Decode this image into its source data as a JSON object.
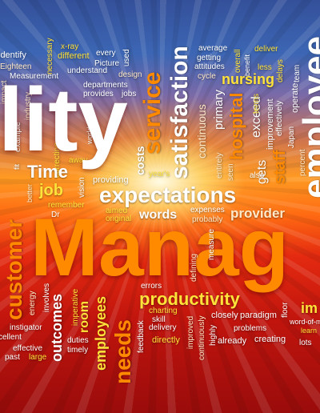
{
  "colors": {
    "orange": "#ff8a00",
    "yellow": "#ffe33a",
    "white": "#ffffff",
    "pale": "#ffe9c8",
    "blue": "#dfe8ff"
  },
  "words": [
    {
      "key": "lity",
      "text": "lity"
    },
    {
      "key": "manag",
      "text": "Manag"
    },
    {
      "key": "identify",
      "text": "identify"
    },
    {
      "key": "eighteen",
      "text": "Eighteen"
    },
    {
      "key": "measurement",
      "text": "Measurement"
    },
    {
      "key": "impact",
      "text": "impact"
    },
    {
      "key": "industry",
      "text": "industry"
    },
    {
      "key": "example",
      "text": "example"
    },
    {
      "key": "necessary",
      "text": "necessary"
    },
    {
      "key": "x_ray",
      "text": "x-ray"
    },
    {
      "key": "different",
      "text": "different"
    },
    {
      "key": "every",
      "text": "every"
    },
    {
      "key": "used",
      "text": "used"
    },
    {
      "key": "picture",
      "text": "Picture"
    },
    {
      "key": "understand",
      "text": "understand"
    },
    {
      "key": "design",
      "text": "design"
    },
    {
      "key": "departments",
      "text": "departments"
    },
    {
      "key": "provides",
      "text": "provides"
    },
    {
      "key": "jobs",
      "text": "jobs"
    },
    {
      "key": "service",
      "text": "service"
    },
    {
      "key": "satisfaction",
      "text": "satisfaction"
    },
    {
      "key": "average",
      "text": "average"
    },
    {
      "key": "getting",
      "text": "getting"
    },
    {
      "key": "attitudes",
      "text": "attitudes"
    },
    {
      "key": "cycle",
      "text": "cycle"
    },
    {
      "key": "overall",
      "text": "overall"
    },
    {
      "key": "deliver",
      "text": "deliver"
    },
    {
      "key": "benefit",
      "text": "benefit"
    },
    {
      "key": "less",
      "text": "less"
    },
    {
      "key": "delays",
      "text": "delays"
    },
    {
      "key": "team",
      "text": "team"
    },
    {
      "key": "nursing",
      "text": "nursing"
    },
    {
      "key": "employee",
      "text": "employee"
    },
    {
      "key": "primary",
      "text": "primary"
    },
    {
      "key": "continuous",
      "text": "continuous"
    },
    {
      "key": "hospital",
      "text": "hospital"
    },
    {
      "key": "exceed",
      "text": "exceed"
    },
    {
      "key": "terms",
      "text": "terms"
    },
    {
      "key": "improvement",
      "text": "improvement"
    },
    {
      "key": "effectively",
      "text": "effectively"
    },
    {
      "key": "operate",
      "text": "operate"
    },
    {
      "key": "japan",
      "text": "Japan"
    },
    {
      "key": "percent",
      "text": "percent"
    },
    {
      "key": "staff",
      "text": "staff"
    },
    {
      "key": "gets",
      "text": "gets"
    },
    {
      "key": "entirely",
      "text": "entirely"
    },
    {
      "key": "seen",
      "text": "seen"
    },
    {
      "key": "also",
      "text": "also"
    },
    {
      "key": "correcting",
      "text": "correcting"
    },
    {
      "key": "world",
      "text": "world"
    },
    {
      "key": "fit",
      "text": "fit"
    },
    {
      "key": "better",
      "text": "better"
    },
    {
      "key": "away",
      "text": "away"
    },
    {
      "key": "time",
      "text": "Time"
    },
    {
      "key": "job",
      "text": "job"
    },
    {
      "key": "vision",
      "text": "vision"
    },
    {
      "key": "providing",
      "text": "providing"
    },
    {
      "key": "costs",
      "text": "costs"
    },
    {
      "key": "years",
      "text": "year's"
    },
    {
      "key": "expectations",
      "text": "expectations"
    },
    {
      "key": "remember",
      "text": "remember"
    },
    {
      "key": "aimed",
      "text": "aimed"
    },
    {
      "key": "original",
      "text": "original"
    },
    {
      "key": "words",
      "text": "words"
    },
    {
      "key": "expenses",
      "text": "expenses"
    },
    {
      "key": "probably",
      "text": "probably"
    },
    {
      "key": "provider",
      "text": "provider"
    },
    {
      "key": "customer",
      "text": "customer"
    },
    {
      "key": "dr",
      "text": "Dr"
    },
    {
      "key": "defining",
      "text": "defining"
    },
    {
      "key": "measure",
      "text": "measure"
    },
    {
      "key": "errors",
      "text": "errors"
    },
    {
      "key": "productivity",
      "text": "productivity"
    },
    {
      "key": "energy",
      "text": "energy"
    },
    {
      "key": "involves",
      "text": "involves"
    },
    {
      "key": "instigator",
      "text": "instigator"
    },
    {
      "key": "outcomes",
      "text": "outcomes"
    },
    {
      "key": "imperative",
      "text": "imperative"
    },
    {
      "key": "duties",
      "text": "duties"
    },
    {
      "key": "room",
      "text": "room"
    },
    {
      "key": "employees",
      "text": "employees"
    },
    {
      "key": "needs",
      "text": "needs"
    },
    {
      "key": "feedback",
      "text": "feedback"
    },
    {
      "key": "charting",
      "text": "charting"
    },
    {
      "key": "skill",
      "text": "skill"
    },
    {
      "key": "delivery",
      "text": "delivery"
    },
    {
      "key": "directly",
      "text": "directly"
    },
    {
      "key": "improved",
      "text": "improved"
    },
    {
      "key": "continuously",
      "text": "continuously"
    },
    {
      "key": "highly",
      "text": "highly"
    },
    {
      "key": "closely",
      "text": "closely"
    },
    {
      "key": "paradigm",
      "text": "paradigm"
    },
    {
      "key": "problems",
      "text": "problems"
    },
    {
      "key": "already",
      "text": "already"
    },
    {
      "key": "creating",
      "text": "creating"
    },
    {
      "key": "floor",
      "text": "floor"
    },
    {
      "key": "im",
      "text": "im"
    },
    {
      "key": "word_of_m",
      "text": "word-of-m"
    },
    {
      "key": "learn",
      "text": "learn"
    },
    {
      "key": "lots",
      "text": "lots"
    },
    {
      "key": "cellent",
      "text": "cellent"
    },
    {
      "key": "effective",
      "text": "effective"
    },
    {
      "key": "past",
      "text": "past"
    },
    {
      "key": "large",
      "text": "large"
    },
    {
      "key": "timely",
      "text": "timely"
    }
  ]
}
